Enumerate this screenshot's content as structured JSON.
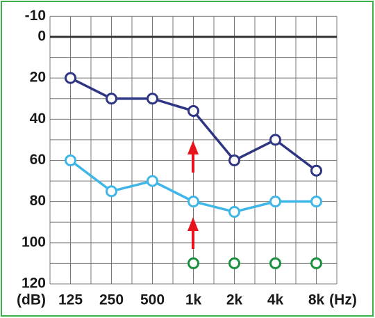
{
  "chart_data": {
    "type": "line",
    "categories": [
      "125",
      "250",
      "500",
      "1k",
      "2k",
      "4k",
      "8k"
    ],
    "x_unit": "(Hz)",
    "y_unit": "(dB)",
    "ylim": [
      120,
      -10
    ],
    "yticks": [
      -10,
      0,
      20,
      40,
      60,
      80,
      100,
      120
    ],
    "minor_yticks": [
      10,
      30,
      50,
      70,
      90,
      110
    ],
    "grid": true,
    "series": [
      {
        "color": "#2e3583",
        "line": true,
        "values": [
          20,
          30,
          30,
          36,
          60,
          50,
          65
        ]
      },
      {
        "color": "#3fb6e6",
        "line": true,
        "values": [
          60,
          75,
          70,
          80,
          85,
          80,
          80
        ]
      },
      {
        "color": "#1a8f3e",
        "line": false,
        "values": [
          null,
          null,
          null,
          110,
          110,
          110,
          110
        ]
      }
    ]
  }
}
